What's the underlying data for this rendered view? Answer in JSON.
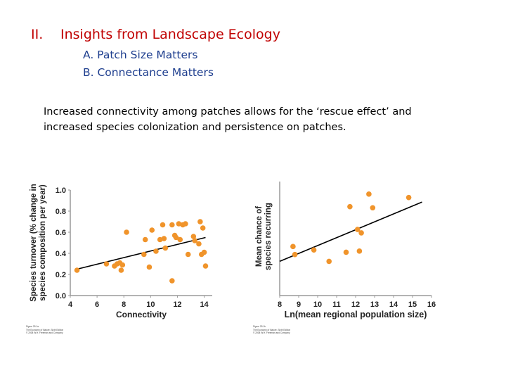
{
  "slide": {
    "heading_number": "II.",
    "heading_text": "Insights from Landscape Ecology",
    "subpoints": [
      "A. Patch Size Matters",
      "B. Connectance Matters"
    ],
    "body": "Increased connectivity among patches allows for the ‘rescue effect’ and increased species colonization and persistence on patches."
  },
  "colors": {
    "heading": "#c00000",
    "subpoint": "#1f3f8f",
    "point": "#f0942b",
    "axis": "#9a9a9a",
    "line": "#000000"
  },
  "figure_credits": [
    [
      "Figure 25.1a",
      "The Economy of Nature, Sixth Edition",
      "© 2008 W.H. Freeman and Company"
    ],
    [
      "Figure 25.1b",
      "The Economy of Nature, Sixth Edition",
      "© 2008 W.H. Freeman and Company"
    ]
  ],
  "chart_data": [
    {
      "type": "scatter",
      "title": "",
      "xlabel": "Connectivity",
      "ylabel_lines": [
        "Species turnover (% change in",
        "species composition per year)"
      ],
      "xlim": [
        4,
        14.6
      ],
      "ylim": [
        0,
        1.0
      ],
      "xticks": [
        4,
        6,
        8,
        10,
        12,
        14
      ],
      "yticks": [
        0.0,
        0.2,
        0.4,
        0.6,
        0.8,
        1.0
      ],
      "ytick_labels": [
        "0.0",
        "0.2",
        "0.4",
        "0.6",
        "0.8",
        "1.0"
      ],
      "x": [
        4.5,
        6.7,
        7.3,
        7.5,
        7.7,
        7.8,
        7.9,
        8.2,
        9.5,
        9.6,
        9.9,
        10.1,
        10.4,
        10.7,
        10.9,
        11.0,
        11.1,
        11.6,
        11.6,
        11.8,
        11.9,
        12.1,
        12.2,
        12.4,
        12.6,
        12.8,
        13.2,
        13.3,
        13.6,
        13.7,
        13.8,
        13.9,
        14.0,
        14.1
      ],
      "y": [
        0.24,
        0.3,
        0.28,
        0.3,
        0.31,
        0.24,
        0.29,
        0.6,
        0.39,
        0.53,
        0.27,
        0.62,
        0.42,
        0.53,
        0.67,
        0.54,
        0.45,
        0.67,
        0.14,
        0.57,
        0.55,
        0.68,
        0.53,
        0.67,
        0.68,
        0.39,
        0.56,
        0.52,
        0.49,
        0.7,
        0.39,
        0.64,
        0.41,
        0.28
      ],
      "trendline": {
        "x": [
          4.5,
          14.1
        ],
        "y": [
          0.25,
          0.55
        ]
      }
    },
    {
      "type": "scatter",
      "title": "",
      "xlabel": "Ln(mean regional population size)",
      "ylabel_lines": [
        "Mean chance of",
        "species recurring"
      ],
      "xlim": [
        8,
        16
      ],
      "ylim": [
        0,
        1
      ],
      "xticks": [
        8,
        9,
        10,
        11,
        12,
        13,
        14,
        15,
        16
      ],
      "x": [
        8.7,
        8.8,
        9.8,
        10.6,
        11.5,
        11.7,
        12.1,
        12.2,
        12.3,
        12.7,
        12.9,
        14.8
      ],
      "y": [
        0.43,
        0.36,
        0.4,
        0.3,
        0.38,
        0.78,
        0.58,
        0.39,
        0.55,
        0.89,
        0.77,
        0.86
      ],
      "trendline": {
        "x": [
          8.0,
          15.5
        ],
        "y": [
          0.3,
          0.82
        ]
      }
    }
  ]
}
